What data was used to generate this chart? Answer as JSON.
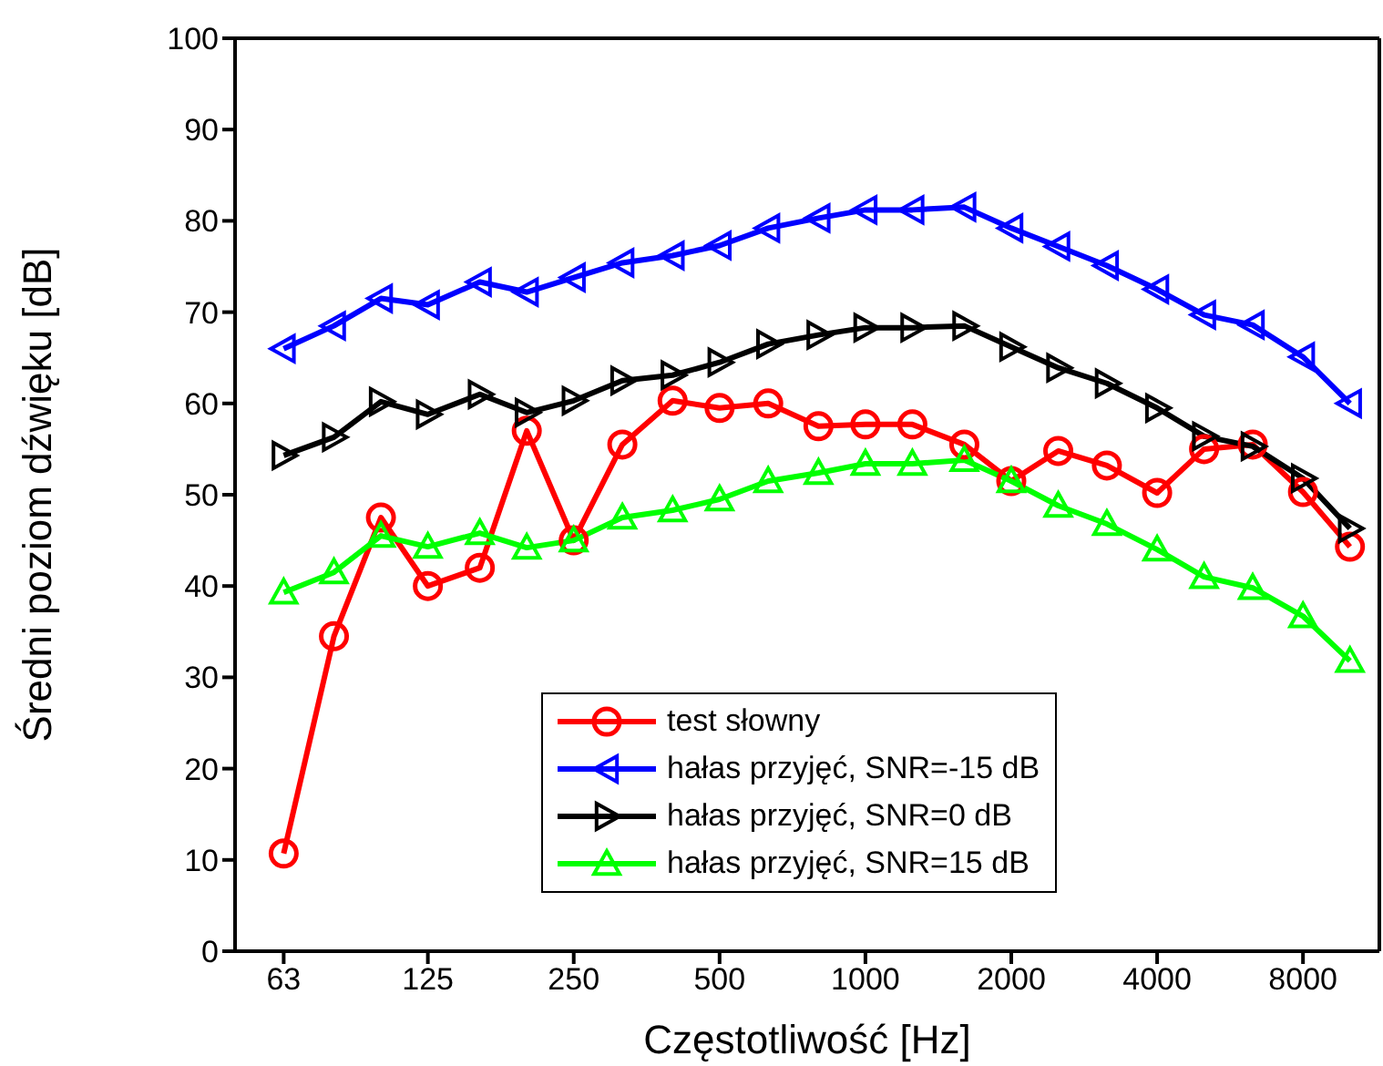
{
  "chart_data": {
    "type": "line",
    "xlabel": "Częstotliwość [Hz]",
    "ylabel": "Średni poziom dźwięku [dB]",
    "x": [
      63,
      80,
      100,
      125,
      160,
      200,
      250,
      315,
      400,
      500,
      630,
      800,
      1000,
      1250,
      1600,
      2000,
      2500,
      3150,
      4000,
      5000,
      6300,
      8000,
      10000
    ],
    "log": "x",
    "xlim": [
      50,
      11500
    ],
    "xticks": [
      63,
      125,
      250,
      500,
      1000,
      2000,
      4000,
      8000
    ],
    "ylim": [
      0,
      100
    ],
    "yticks": [
      0,
      10,
      20,
      30,
      40,
      50,
      60,
      70,
      80,
      90,
      100
    ],
    "grid": false,
    "legend": "bottom",
    "line_style": "solid",
    "series": [
      {
        "name": "test słowny",
        "color": "#ff0000",
        "marker": "circle",
        "values": [
          10.7,
          34.5,
          47.5,
          40,
          42,
          57,
          45,
          55.5,
          60.3,
          59.5,
          60,
          57.5,
          57.7,
          57.7,
          55.5,
          51.5,
          54.8,
          53.2,
          50.2,
          55,
          55.5,
          50.3,
          44.3
        ]
      },
      {
        "name": "hałas przyjęć, SNR=-15 dB",
        "color": "#0000ff",
        "marker": "triangle-left",
        "values": [
          66,
          68.5,
          71.5,
          70.8,
          73.3,
          72.2,
          73.8,
          75.4,
          76.2,
          77.3,
          79.2,
          80.3,
          81.2,
          81.2,
          81.5,
          79.2,
          77.2,
          75.1,
          72.5,
          69.7,
          68.6,
          65.1,
          60
        ]
      },
      {
        "name": "hałas przyjęć, SNR=0 dB",
        "color": "#000000",
        "marker": "triangle-right",
        "values": [
          54.3,
          56.3,
          60.2,
          58.8,
          61,
          59,
          60.3,
          62.5,
          63.1,
          64.5,
          66.5,
          67.5,
          68.3,
          68.3,
          68.5,
          66.2,
          63.9,
          62.2,
          59.5,
          56.4,
          55.3,
          51.8,
          46.3
        ]
      },
      {
        "name": "hałas przyjęć, SNR=15 dB",
        "color": "#00ff00",
        "marker": "triangle",
        "values": [
          39.3,
          41.5,
          45.5,
          44.3,
          45.8,
          44.2,
          45,
          47.5,
          48.3,
          49.5,
          51.5,
          52.4,
          53.4,
          53.4,
          53.8,
          51.5,
          48.8,
          46.8,
          44,
          41,
          39.8,
          36.7,
          31.8
        ]
      }
    ]
  }
}
